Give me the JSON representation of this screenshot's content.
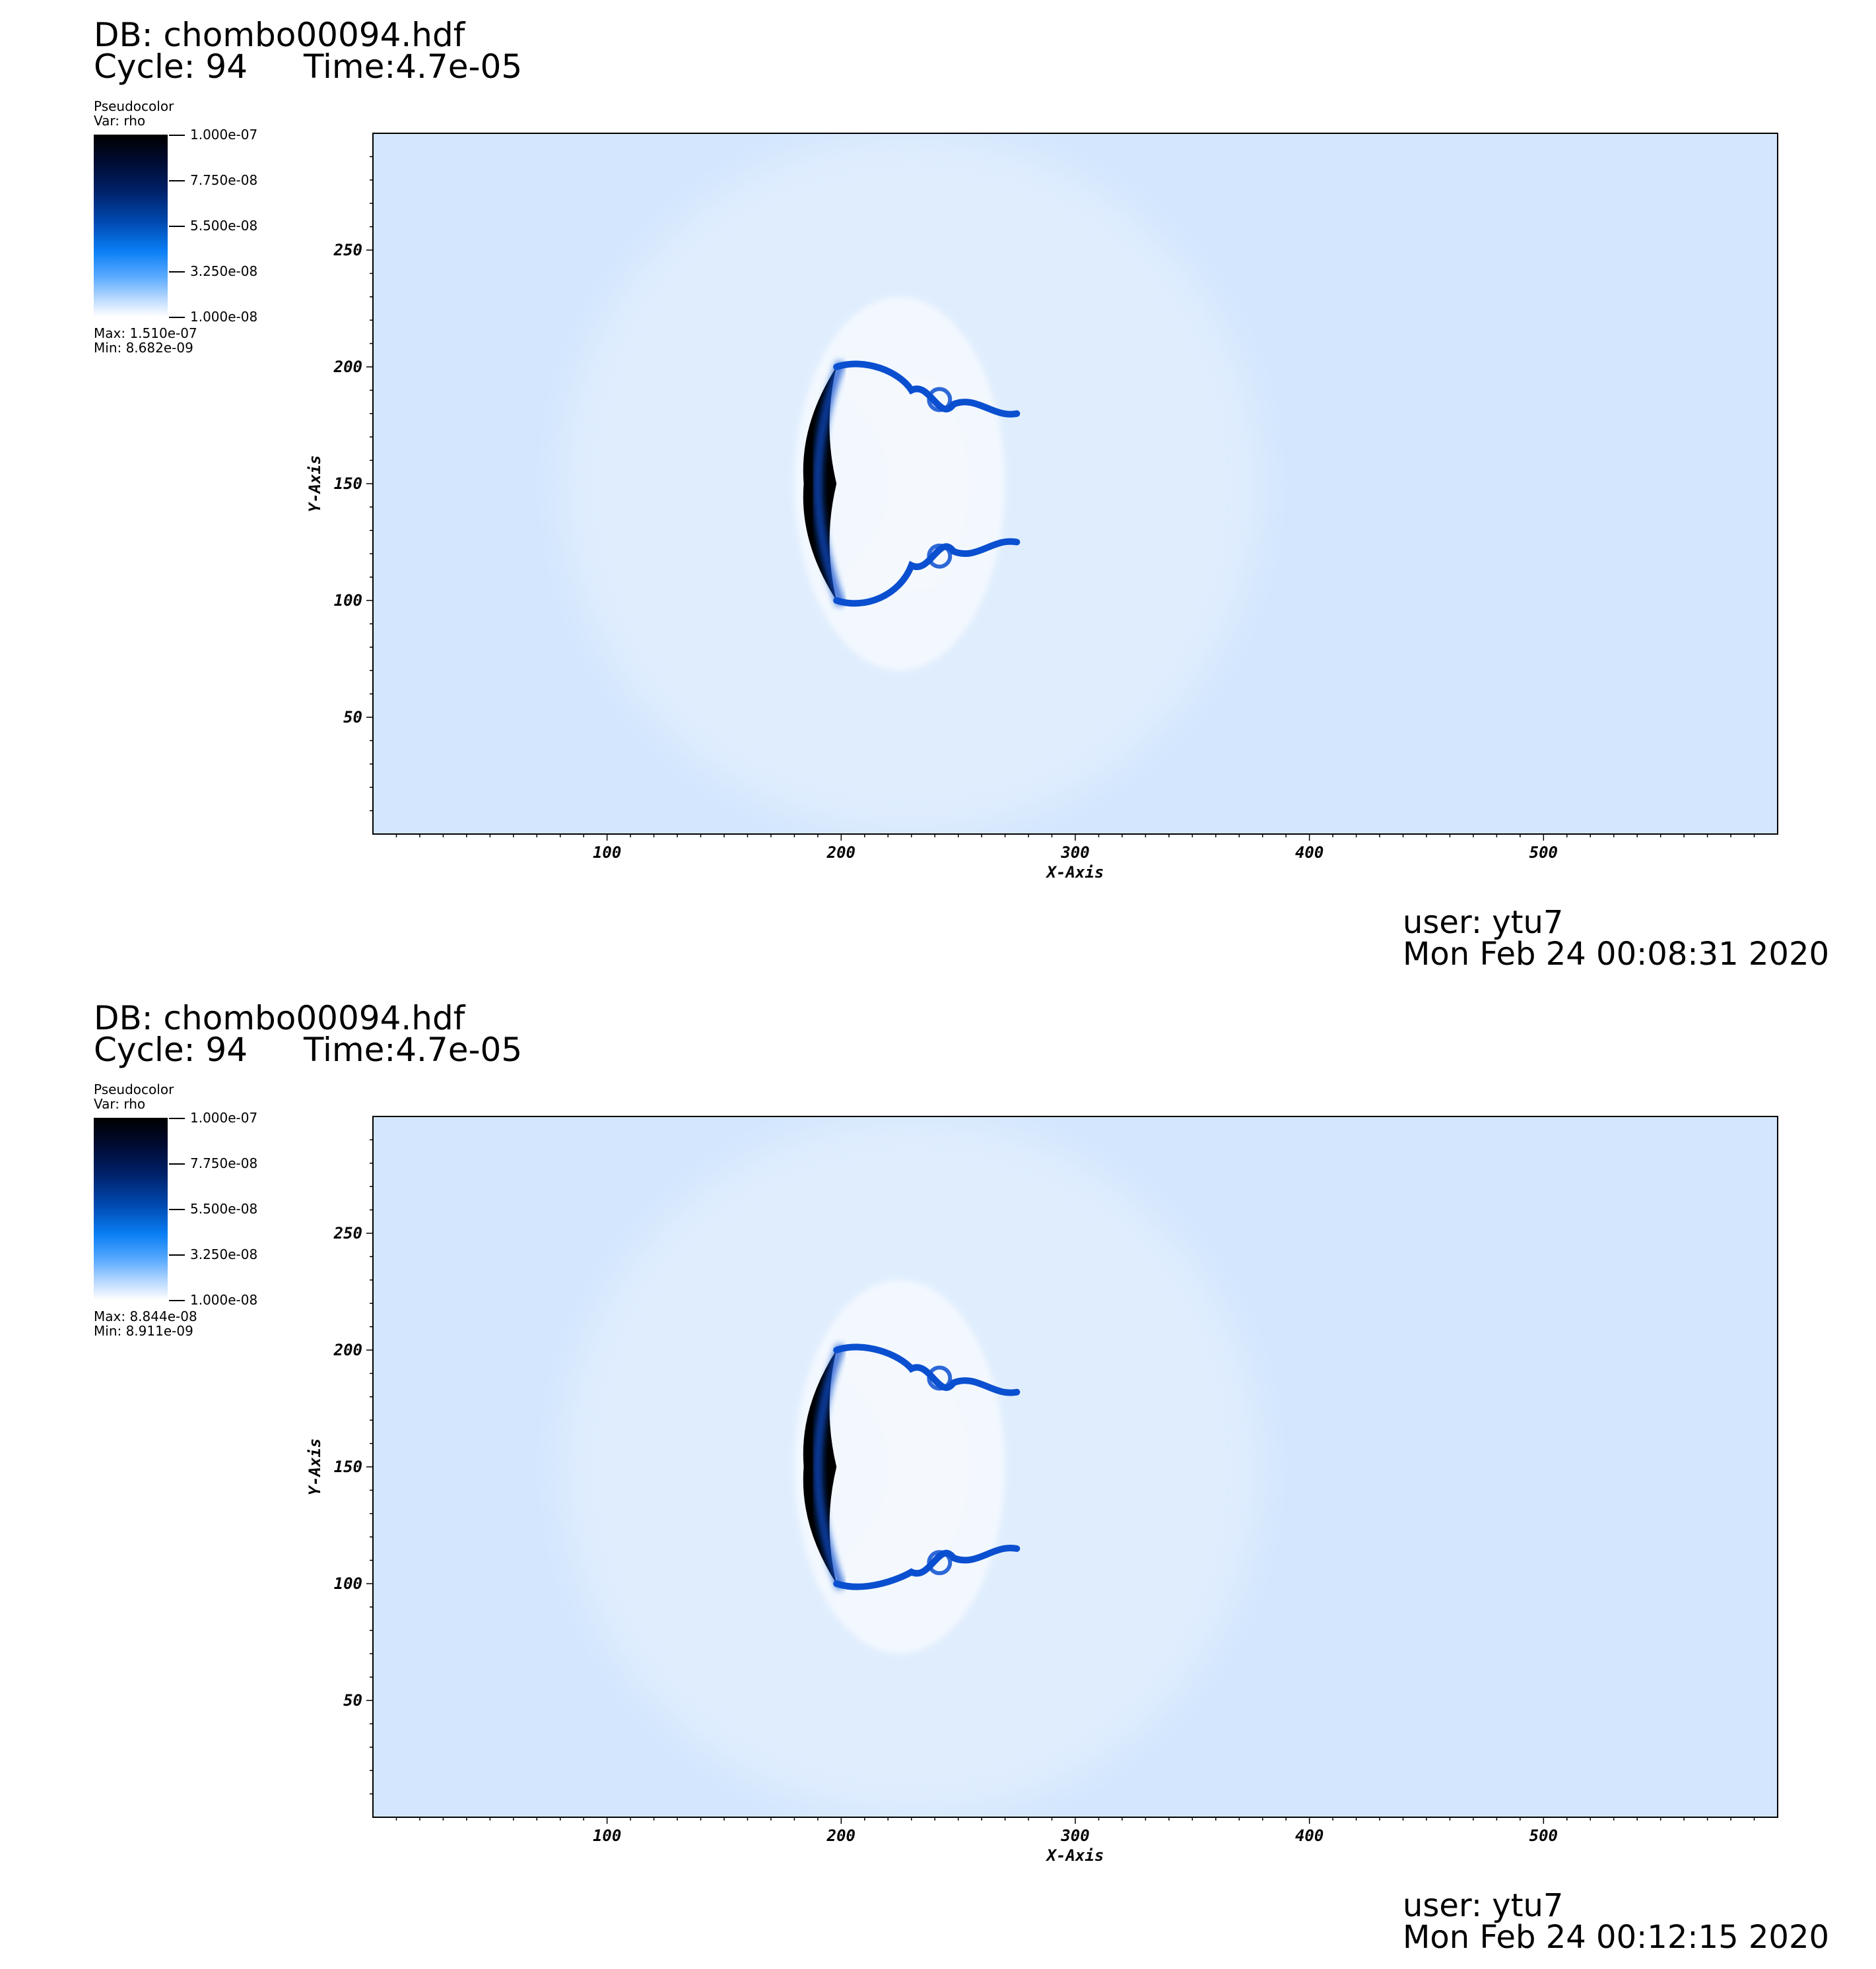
{
  "colors": {
    "background_field": "#d3e6fd",
    "dense_dark": "#000000",
    "dense_blue": "#0a4fd0",
    "light_blob": "#eef6ff"
  },
  "panels": [
    {
      "db": "DB: chombo00094.hdf",
      "cycle": "Cycle: 94",
      "time": "Time:4.7e-05",
      "plot_type": "Pseudocolor",
      "var": "Var: rho",
      "max": "Max:  1.510e-07",
      "min": "Min:  8.682e-09",
      "user": "user: ytu7",
      "date": "Mon Feb 24 00:08:31 2020"
    },
    {
      "db": "DB: chombo00094.hdf",
      "cycle": "Cycle: 94",
      "time": "Time:4.7e-05",
      "plot_type": "Pseudocolor",
      "var": "Var: rho",
      "max": "Max:  8.844e-08",
      "min": "Min:  8.911e-09",
      "user": "user: ytu7",
      "date": "Mon Feb 24 00:12:15 2020"
    }
  ],
  "chart_data": [
    {
      "type": "heatmap",
      "title": "",
      "variable": "rho",
      "xlabel": "X-Axis",
      "ylabel": "Y-Axis",
      "xlim": [
        0,
        600
      ],
      "ylim": [
        0,
        300
      ],
      "x_ticks": [
        "100",
        "200",
        "300",
        "400",
        "500"
      ],
      "y_ticks": [
        "50",
        "100",
        "150",
        "200",
        "250"
      ],
      "colorbar_ticks": [
        "1.000e-07",
        "7.750e-08",
        "5.500e-08",
        "3.250e-08",
        "1.000e-08"
      ],
      "colorbar_range": [
        1e-08,
        1e-07
      ],
      "data_max": 1.51e-07,
      "data_min": 8.682e-09,
      "structure": {
        "front_x": 190,
        "front_y_range": [
          100,
          200
        ],
        "vortex_y": [
          125,
          180
        ],
        "tail_x": 275
      }
    },
    {
      "type": "heatmap",
      "title": "",
      "variable": "rho",
      "xlabel": "X-Axis",
      "ylabel": "Y-Axis",
      "xlim": [
        0,
        600
      ],
      "ylim": [
        0,
        300
      ],
      "x_ticks": [
        "100",
        "200",
        "300",
        "400",
        "500"
      ],
      "y_ticks": [
        "50",
        "100",
        "150",
        "200",
        "250"
      ],
      "colorbar_ticks": [
        "1.000e-07",
        "7.750e-08",
        "5.500e-08",
        "3.250e-08",
        "1.000e-08"
      ],
      "colorbar_range": [
        1e-08,
        1e-07
      ],
      "data_max": 8.844e-08,
      "data_min": 8.911e-09,
      "structure": {
        "front_x": 190,
        "front_y_range": [
          100,
          200
        ],
        "vortex_y": [
          115,
          182
        ],
        "tail_x": 275
      }
    }
  ]
}
